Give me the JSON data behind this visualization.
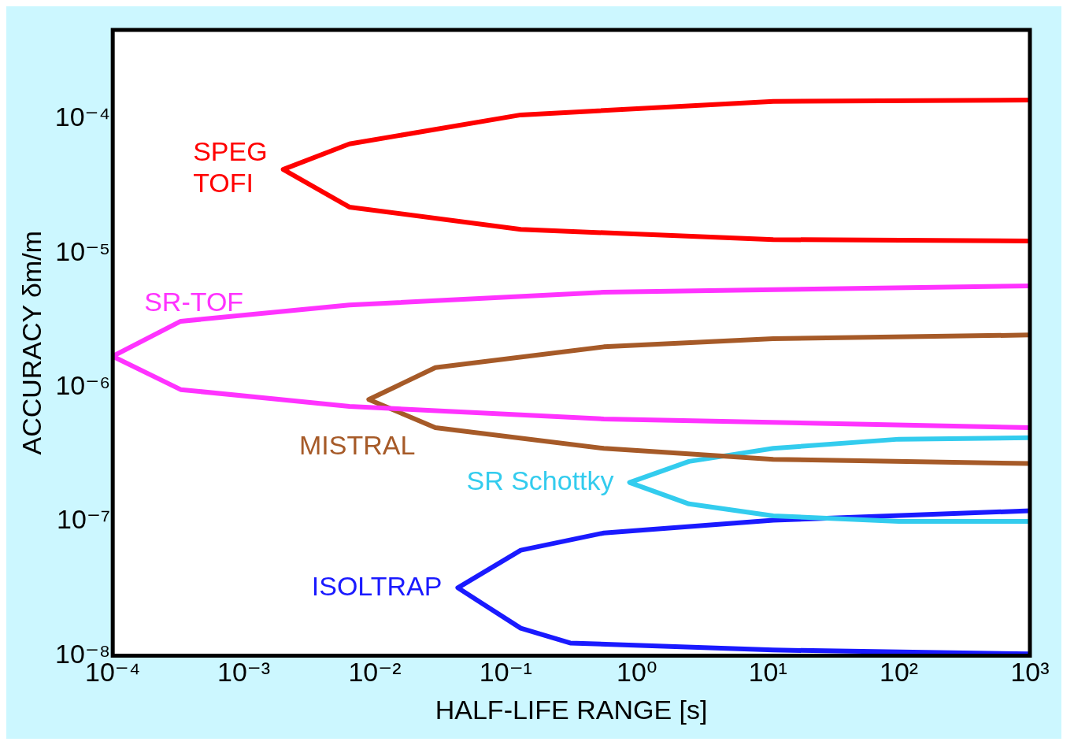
{
  "chart_data": {
    "type": "line",
    "xlabel": "HALF-LIFE RANGE [s]",
    "ylabel": "ACCURACY δm/m",
    "log": "xy",
    "legend": false,
    "marker": "none",
    "line_style": "solid",
    "xlim": [
      0.0001,
      1000
    ],
    "ylim": [
      1e-08,
      0.00046
    ],
    "xticks": [
      {
        "value": 0.0001,
        "label": "10⁻⁴"
      },
      {
        "value": 0.001,
        "label": "10⁻³"
      },
      {
        "value": 0.01,
        "label": "10⁻²"
      },
      {
        "value": 0.1,
        "label": "10⁻¹"
      },
      {
        "value": 1,
        "label": "10⁰"
      },
      {
        "value": 10,
        "label": "10¹"
      },
      {
        "value": 100,
        "label": "10²"
      },
      {
        "value": 1000,
        "label": "10³"
      }
    ],
    "yticks": [
      {
        "value": 1e-08,
        "label": "10⁻⁸"
      },
      {
        "value": 1e-07,
        "label": "10⁻⁷"
      },
      {
        "value": 1e-06,
        "label": "10⁻⁶"
      },
      {
        "value": 1e-05,
        "label": "10⁻⁵"
      },
      {
        "value": 0.0001,
        "label": "10⁻⁴"
      }
    ],
    "series": [
      {
        "name": "SPEG\nTOFI",
        "color": "#ff0000",
        "x": [
          1000,
          11,
          0.13,
          0.0064,
          0.002,
          0.0064,
          0.13,
          11,
          1000
        ],
        "values": [
          0.000138,
          0.000135,
          0.000107,
          6.5e-05,
          4.2e-05,
          2.2e-05,
          1.5e-05,
          1.26e-05,
          1.23e-05
        ]
      },
      {
        "name": "SR-TOF",
        "color": "#ff33ff",
        "x": [
          1000,
          0.56,
          0.0064,
          0.00033,
          0.0001,
          0.00033,
          0.0064,
          0.56,
          1000
        ],
        "values": [
          5.7e-06,
          5.1e-06,
          4.1e-06,
          3.1e-06,
          1.7e-06,
          9.6e-07,
          7.2e-07,
          5.8e-07,
          5e-07
        ]
      },
      {
        "name": "MISTRAL",
        "color": "#a65a28",
        "x": [
          1000,
          11,
          0.56,
          0.029,
          0.009,
          0.029,
          0.56,
          11,
          1000
        ],
        "values": [
          2.45e-06,
          2.3e-06,
          2e-06,
          1.4e-06,
          8.1e-07,
          5e-07,
          3.5e-07,
          2.9e-07,
          2.7e-07
        ]
      },
      {
        "name": "SR Schottky",
        "color": "#33ccee",
        "x": [
          1000,
          100,
          11,
          2.5,
          0.88,
          2.5,
          11,
          100,
          1000
        ],
        "values": [
          4.2e-07,
          4.1e-07,
          3.5e-07,
          2.8e-07,
          1.95e-07,
          1.35e-07,
          1.1e-07,
          1e-07,
          1e-07
        ]
      },
      {
        "name": "ISOLTRAP",
        "color": "#1a1aff",
        "x": [
          1000,
          11,
          0.56,
          0.13,
          0.043,
          0.13,
          0.31,
          11,
          1000
        ],
        "values": [
          1.2e-07,
          1.02e-07,
          8.2e-08,
          6.1e-08,
          3.2e-08,
          1.6e-08,
          1.24e-08,
          1.1e-08,
          1.03e-08
        ]
      }
    ]
  }
}
